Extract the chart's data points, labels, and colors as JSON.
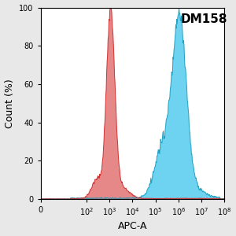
{
  "xlabel": "APC-A",
  "ylabel": "Count (%)",
  "ylim": [
    0,
    100
  ],
  "yticks": [
    0,
    20,
    40,
    60,
    80,
    100
  ],
  "background_color": "#e8e8e8",
  "plot_bg_color": "#ffffff",
  "red_fill": "#e06060",
  "red_fill_alpha": 0.75,
  "red_edge": "#cc2222",
  "blue_fill": "#55ccee",
  "blue_fill_alpha": 0.85,
  "blue_edge": "#1199bb",
  "red_peak_log": 3.05,
  "red_sigma_log": 0.18,
  "blue_peak_log": 6.05,
  "blue_sigma_log": 0.3,
  "annotation": "DM158",
  "annotation_fontsize": 11,
  "label_fontsize": 9,
  "tick_fontsize": 7
}
